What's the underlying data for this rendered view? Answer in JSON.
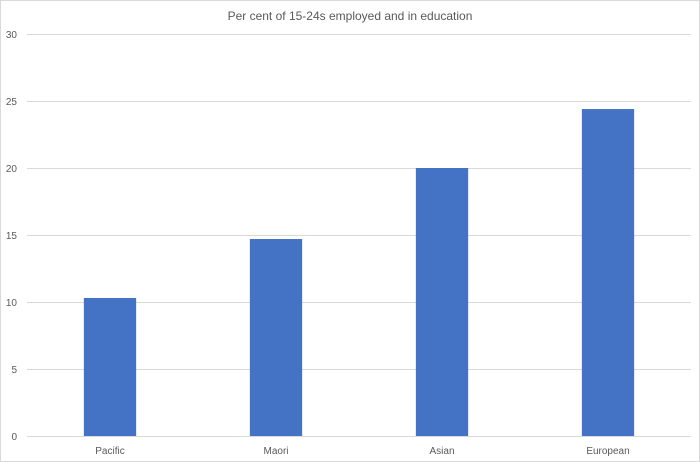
{
  "chart_data": {
    "type": "bar",
    "title": "Per cent of 15-24s employed and in education",
    "categories": [
      "Pacific",
      "Maori",
      "Asian",
      "European"
    ],
    "values": [
      10.3,
      14.7,
      20.0,
      24.4
    ],
    "xlabel": "",
    "ylabel": "",
    "ylim": [
      0,
      30
    ],
    "yticks": [
      0,
      5,
      10,
      15,
      20,
      25,
      30
    ],
    "ytick_labels": [
      "0",
      "5",
      "10",
      "15",
      "20",
      "25",
      "30"
    ],
    "grid": true,
    "legend": "none",
    "bar_color": "#4472c4"
  }
}
